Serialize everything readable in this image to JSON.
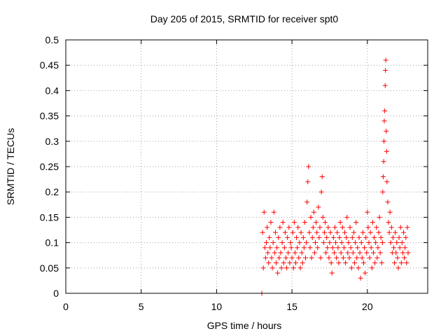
{
  "chart_data": {
    "type": "scatter",
    "title": "Day 205 of 2015, SRMTID for receiver spt0",
    "xlabel": "GPS time / hours",
    "ylabel": "SRMTID / TECUs",
    "xlim": [
      0,
      24
    ],
    "ylim": [
      0,
      0.5
    ],
    "xticks": [
      0,
      5,
      10,
      15,
      20
    ],
    "xtick_labels": [
      "0",
      "5",
      "10",
      "15",
      "20"
    ],
    "yticks": [
      0,
      0.05,
      0.1,
      0.15,
      0.2,
      0.25,
      0.3,
      0.35,
      0.4,
      0.45,
      0.5
    ],
    "ytick_labels": [
      "0",
      "0.05",
      "0.1",
      "0.15",
      "0.2",
      "0.25",
      "0.3",
      "0.35",
      "0.4",
      "0.45",
      "0.5"
    ],
    "grid": true,
    "marker": "plus",
    "color": "#ff0000",
    "series": [
      {
        "x": [
          13.0,
          13.05,
          13.1,
          13.15,
          13.2,
          13.25,
          13.3,
          13.35,
          13.4,
          13.45,
          13.5,
          13.55,
          13.6,
          13.65,
          13.7,
          13.75,
          13.8,
          13.85,
          13.9,
          13.95,
          14.0,
          14.05,
          14.1,
          14.15,
          14.2,
          14.25,
          14.3,
          14.35,
          14.4,
          14.45,
          14.5,
          14.55,
          14.6,
          14.65,
          14.7,
          14.75,
          14.8,
          14.85,
          14.9,
          14.95,
          15.0,
          15.05,
          15.1,
          15.15,
          15.2,
          15.25,
          15.3,
          15.35,
          15.4,
          15.45,
          15.5,
          15.55,
          15.6,
          15.65,
          15.7,
          15.75,
          15.8,
          15.85,
          15.9,
          15.95,
          16.0,
          16.05,
          16.1,
          16.15,
          16.2,
          16.25,
          16.3,
          16.35,
          16.4,
          16.45,
          16.5,
          16.55,
          16.6,
          16.65,
          16.7,
          16.75,
          16.8,
          16.85,
          16.9,
          16.95,
          17.0,
          17.05,
          17.1,
          17.15,
          17.2,
          17.25,
          17.3,
          17.35,
          17.4,
          17.45,
          17.5,
          17.55,
          17.6,
          17.65,
          17.7,
          17.75,
          17.8,
          17.85,
          17.9,
          17.95,
          18.0,
          18.05,
          18.1,
          18.15,
          18.2,
          18.25,
          18.3,
          18.35,
          18.4,
          18.45,
          18.5,
          18.55,
          18.6,
          18.65,
          18.7,
          18.75,
          18.8,
          18.85,
          18.9,
          18.95,
          19.0,
          19.05,
          19.1,
          19.15,
          19.2,
          19.25,
          19.3,
          19.35,
          19.4,
          19.45,
          19.5,
          19.55,
          19.6,
          19.65,
          19.7,
          19.75,
          19.8,
          19.85,
          19.9,
          19.95,
          20.0,
          20.05,
          20.1,
          20.15,
          20.2,
          20.25,
          20.3,
          20.35,
          20.4,
          20.45,
          20.5,
          20.55,
          20.6,
          20.65,
          20.7,
          20.75,
          20.8,
          20.85,
          20.9,
          20.95,
          21.0,
          21.02,
          21.05,
          21.08,
          21.1,
          21.12,
          21.15,
          21.18,
          21.2,
          21.22,
          21.25,
          21.28,
          21.3,
          21.35,
          21.4,
          21.45,
          21.5,
          21.55,
          21.6,
          21.65,
          21.7,
          21.75,
          21.8,
          21.85,
          21.9,
          21.95,
          22.0,
          22.05,
          22.1,
          22.15,
          22.2,
          22.25,
          22.3,
          22.35,
          22.4,
          22.45,
          22.5,
          22.55,
          22.6,
          22.65,
          22.7
        ],
        "y": [
          0.0,
          0.12,
          0.05,
          0.16,
          0.09,
          0.07,
          0.1,
          0.13,
          0.08,
          0.06,
          0.11,
          0.09,
          0.14,
          0.07,
          0.05,
          0.1,
          0.16,
          0.08,
          0.12,
          0.06,
          0.09,
          0.04,
          0.11,
          0.07,
          0.13,
          0.08,
          0.05,
          0.1,
          0.14,
          0.06,
          0.09,
          0.12,
          0.07,
          0.05,
          0.11,
          0.08,
          0.13,
          0.06,
          0.1,
          0.09,
          0.07,
          0.12,
          0.05,
          0.14,
          0.08,
          0.06,
          0.11,
          0.09,
          0.13,
          0.07,
          0.1,
          0.05,
          0.12,
          0.08,
          0.06,
          0.11,
          0.09,
          0.14,
          0.07,
          0.1,
          0.18,
          0.22,
          0.25,
          0.12,
          0.09,
          0.15,
          0.07,
          0.11,
          0.13,
          0.16,
          0.08,
          0.1,
          0.14,
          0.12,
          0.09,
          0.17,
          0.11,
          0.13,
          0.07,
          0.2,
          0.23,
          0.15,
          0.1,
          0.12,
          0.14,
          0.08,
          0.11,
          0.09,
          0.13,
          0.07,
          0.1,
          0.12,
          0.06,
          0.04,
          0.09,
          0.11,
          0.08,
          0.13,
          0.1,
          0.07,
          0.12,
          0.09,
          0.06,
          0.11,
          0.14,
          0.08,
          0.1,
          0.13,
          0.07,
          0.09,
          0.12,
          0.06,
          0.11,
          0.15,
          0.08,
          0.1,
          0.07,
          0.13,
          0.09,
          0.05,
          0.11,
          0.08,
          0.12,
          0.06,
          0.1,
          0.14,
          0.07,
          0.09,
          0.05,
          0.11,
          0.08,
          0.03,
          0.1,
          0.07,
          0.12,
          0.06,
          0.09,
          0.04,
          0.11,
          0.08,
          0.16,
          0.13,
          0.1,
          0.07,
          0.12,
          0.09,
          0.05,
          0.14,
          0.08,
          0.11,
          0.06,
          0.1,
          0.13,
          0.07,
          0.09,
          0.12,
          0.15,
          0.08,
          0.11,
          0.06,
          0.1,
          0.2,
          0.23,
          0.26,
          0.3,
          0.34,
          0.36,
          0.41,
          0.44,
          0.46,
          0.32,
          0.28,
          0.22,
          0.18,
          0.14,
          0.12,
          0.16,
          0.1,
          0.13,
          0.08,
          0.11,
          0.09,
          0.06,
          0.12,
          0.08,
          0.1,
          0.07,
          0.05,
          0.11,
          0.09,
          0.13,
          0.06,
          0.1,
          0.08,
          0.12,
          0.07,
          0.09,
          0.11,
          0.06,
          0.13,
          0.08
        ]
      }
    ]
  }
}
